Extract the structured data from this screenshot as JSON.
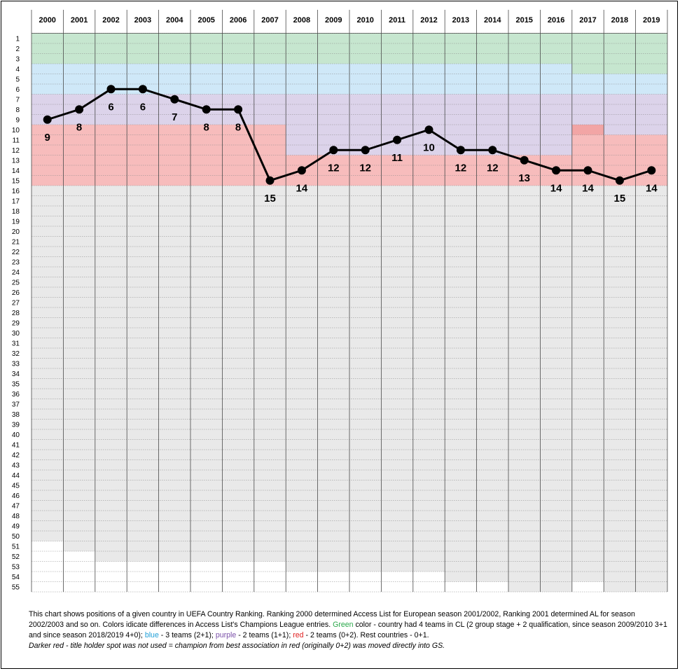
{
  "colors": {
    "green": "#c6e6cf",
    "blue": "#cfe8f8",
    "purple": "#dcd3ea",
    "red": "#f7bcbc",
    "dark_red": "#f2a5a5",
    "grey": "#e9e9e9",
    "white": "#ffffff",
    "line": "#000000"
  },
  "chart_data": {
    "type": "line",
    "x": [
      "2000",
      "2001",
      "2002",
      "2003",
      "2004",
      "2005",
      "2006",
      "2007",
      "2008",
      "2009",
      "2010",
      "2011",
      "2012",
      "2013",
      "2014",
      "2015",
      "2016",
      "2017",
      "2018",
      "2019"
    ],
    "y_ticks": [
      1,
      2,
      3,
      4,
      5,
      6,
      7,
      8,
      9,
      10,
      11,
      12,
      13,
      14,
      15,
      16,
      17,
      18,
      19,
      20,
      21,
      22,
      23,
      24,
      25,
      26,
      27,
      28,
      29,
      30,
      31,
      32,
      33,
      34,
      35,
      36,
      37,
      38,
      39,
      40,
      41,
      42,
      43,
      44,
      45,
      46,
      47,
      48,
      49,
      50,
      51,
      52,
      53,
      54,
      55
    ],
    "y_inverted": true,
    "ylim": [
      1,
      55
    ],
    "series": [
      {
        "values": [
          9,
          8,
          6,
          6,
          7,
          8,
          8,
          15,
          14,
          12,
          12,
          11,
          10,
          12,
          12,
          13,
          14,
          14,
          15,
          14
        ]
      }
    ],
    "bands": [
      {
        "green": 3,
        "blue": 6,
        "purple": 9,
        "red": 15,
        "gray_end": 50
      },
      {
        "green": 3,
        "blue": 6,
        "purple": 9,
        "red": 15,
        "gray_end": 51
      },
      {
        "green": 3,
        "blue": 6,
        "purple": 9,
        "red": 15,
        "gray_end": 52
      },
      {
        "green": 3,
        "blue": 6,
        "purple": 9,
        "red": 15,
        "gray_end": 52
      },
      {
        "green": 3,
        "blue": 6,
        "purple": 9,
        "red": 15,
        "gray_end": 52
      },
      {
        "green": 3,
        "blue": 6,
        "purple": 9,
        "red": 15,
        "gray_end": 52
      },
      {
        "green": 3,
        "blue": 6,
        "purple": 9,
        "red": 15,
        "gray_end": 52
      },
      {
        "green": 3,
        "blue": 6,
        "purple": 9,
        "red": 15,
        "gray_end": 52
      },
      {
        "green": 3,
        "blue": 6,
        "purple": 12,
        "red": 15,
        "gray_end": 53
      },
      {
        "green": 3,
        "blue": 6,
        "purple": 12,
        "red": 15,
        "gray_end": 53
      },
      {
        "green": 3,
        "blue": 6,
        "purple": 12,
        "red": 15,
        "gray_end": 53
      },
      {
        "green": 3,
        "blue": 6,
        "purple": 12,
        "red": 15,
        "gray_end": 53
      },
      {
        "green": 3,
        "blue": 6,
        "purple": 12,
        "red": 15,
        "gray_end": 53
      },
      {
        "green": 3,
        "blue": 6,
        "purple": 12,
        "red": 15,
        "gray_end": 54
      },
      {
        "green": 3,
        "blue": 6,
        "purple": 12,
        "red": 15,
        "gray_end": 54
      },
      {
        "green": 3,
        "blue": 6,
        "purple": 12,
        "red": 15,
        "gray_end": 55
      },
      {
        "green": 3,
        "blue": 6,
        "purple": 12,
        "red": 15,
        "gray_end": 55
      },
      {
        "green": 4,
        "blue": 6,
        "purple": 10,
        "red": 15,
        "dark_red": [
          10
        ],
        "gray_end": 54
      },
      {
        "green": 4,
        "blue": 6,
        "purple": 10,
        "red": 15,
        "gray_end": 55
      },
      {
        "green": 4,
        "blue": 6,
        "purple": 10,
        "red": 15,
        "gray_end": 55
      }
    ]
  },
  "note": {
    "p1": "This chart shows positions of a given country in  UEFA Country Ranking.  Ranking 2000 determined Access List for European season 2001/2002, Ranking 2001 determined AL for season 2002/2003 and so on.  Colors idicate differences in Access List's Champions League entries.  ",
    "green_word": "Green",
    "p2": " color - country had 4 teams in CL (2 group stage + 2 qualification, since season 2009/2010 3+1 and since season 2018/2019  4+0); ",
    "blue_word": "blue",
    "p3": " - 3 teams  (2+1); ",
    "purple_word": "purple",
    "p4": " - 2 teams (1+1); ",
    "red_word": "red",
    "p5": " - 2 teams (0+2). Rest countries - 0+1.",
    "p6": "Darker red - title holder spot was not used = champion from best association in red (originally 0+2) was moved directly  into GS.",
    "colors": {
      "green": "#2aa84a",
      "blue": "#1f9fd8",
      "purple": "#7a4fa8",
      "red": "#e01e1e"
    }
  }
}
